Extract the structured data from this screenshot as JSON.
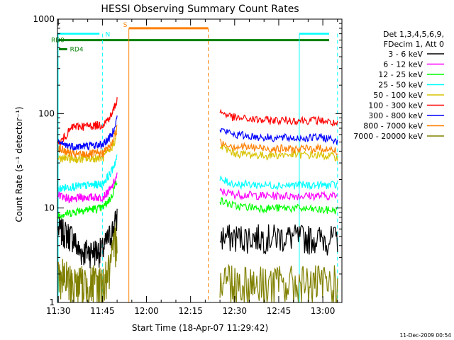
{
  "chart_data": {
    "type": "line",
    "title": "HESSI Observing Summary Count Rates",
    "xlabel": "Start Time (18-Apr-07 11:29:42)",
    "ylabel": "Count Rate (s⁻¹ detector⁻¹)",
    "x_scale": "time",
    "y_scale": "log",
    "xlim": [
      "11:29:42",
      "13:06:30"
    ],
    "ylim": [
      1,
      1000
    ],
    "x_ticks": [
      "11:30",
      "11:45",
      "12:00",
      "12:15",
      "12:30",
      "12:45",
      "13:00"
    ],
    "y_ticks": [
      "1",
      "10",
      "100",
      "1000"
    ],
    "legend_header": [
      "Det 1,3,4,5,6,9,",
      "FDecim 1, Att 0"
    ],
    "legend_position": "right",
    "footer": "11-Dec-2009 00:54",
    "series": [
      {
        "name": "3 - 6 keV",
        "color": "#000000",
        "x": [
          "11:30",
          "11:35",
          "11:37",
          "11:45",
          "11:48",
          "11:50",
          "12:25",
          "12:30",
          "12:40",
          "12:50",
          "13:00",
          "13:05"
        ],
        "values": [
          6,
          5,
          3.5,
          3.6,
          5.5,
          8,
          5,
          5,
          5,
          5,
          4.8,
          4.8
        ]
      },
      {
        "name": "6 - 12 keV",
        "color": "#ff00ff",
        "x": [
          "11:30",
          "11:35",
          "11:37",
          "11:45",
          "11:48",
          "11:50",
          "12:25",
          "12:30",
          "12:40",
          "12:50",
          "13:00",
          "13:05"
        ],
        "values": [
          14,
          12,
          13,
          13,
          16,
          22,
          15,
          14,
          13.5,
          13.5,
          13.5,
          13.5
        ]
      },
      {
        "name": "12 - 25 keV",
        "color": "#00ff00",
        "x": [
          "11:30",
          "11:35",
          "11:37",
          "11:45",
          "11:48",
          "11:50",
          "12:25",
          "12:30",
          "12:40",
          "12:50",
          "13:00",
          "13:05"
        ],
        "values": [
          8.5,
          9,
          9.5,
          10,
          13,
          20,
          12,
          10.5,
          10,
          10,
          9.5,
          9.5
        ]
      },
      {
        "name": "25 - 50 keV",
        "color": "#00ffff",
        "x": [
          "11:30",
          "11:35",
          "11:37",
          "11:45",
          "11:48",
          "11:50",
          "12:25",
          "12:30",
          "12:40",
          "12:50",
          "13:00",
          "13:05"
        ],
        "values": [
          16,
          17,
          17,
          18,
          24,
          35,
          20,
          18,
          17.5,
          17.5,
          17.5,
          17.5
        ]
      },
      {
        "name": "50 - 100 keV",
        "color": "#d9c300",
        "x": [
          "11:30",
          "11:35",
          "11:37",
          "11:45",
          "11:48",
          "11:50",
          "12:25",
          "12:30",
          "12:40",
          "12:50",
          "13:00",
          "13:05"
        ],
        "values": [
          34,
          33,
          33,
          34,
          42,
          60,
          45,
          38,
          36,
          37,
          36,
          35
        ]
      },
      {
        "name": "100 - 300 keV",
        "color": "#ff0000",
        "x": [
          "11:30",
          "11:35",
          "11:37",
          "11:45",
          "11:48",
          "11:50",
          "12:25",
          "12:30",
          "12:40",
          "12:50",
          "13:00",
          "13:05"
        ],
        "values": [
          47,
          73,
          73,
          76,
          95,
          140,
          105,
          90,
          85,
          85,
          85,
          77
        ]
      },
      {
        "name": "300 - 800 keV",
        "color": "#0000ff",
        "x": [
          "11:30",
          "11:35",
          "11:37",
          "11:45",
          "11:48",
          "11:50",
          "12:25",
          "12:30",
          "12:40",
          "12:50",
          "13:00",
          "13:05"
        ],
        "values": [
          48,
          45,
          45,
          47,
          58,
          90,
          68,
          60,
          56,
          55,
          56,
          52
        ]
      },
      {
        "name": "800 - 7000 keV",
        "color": "#ff8000",
        "x": [
          "11:30",
          "11:35",
          "11:37",
          "11:45",
          "11:48",
          "11:50",
          "12:25",
          "12:30",
          "12:40",
          "12:50",
          "13:00",
          "13:05"
        ],
        "values": [
          43,
          37,
          37,
          38,
          47,
          70,
          50,
          45,
          43,
          42,
          43,
          40
        ]
      },
      {
        "name": "7000 - 20000 keV",
        "color": "#808000",
        "x": [
          "11:30",
          "11:35",
          "11:37",
          "11:45",
          "11:48",
          "11:50",
          "12:25",
          "12:30",
          "12:40",
          "12:50",
          "13:00",
          "13:05"
        ],
        "values": [
          2,
          1.6,
          1.6,
          1.6,
          2.5,
          6,
          2,
          1.7,
          1.6,
          1.6,
          1.6,
          1.6
        ]
      }
    ],
    "annotations": {
      "N": {
        "label": "N",
        "color": "#00ffff"
      },
      "S": {
        "label": "S",
        "color": "#ff8000"
      },
      "RD0": {
        "label": "RD0",
        "color": "#008000"
      },
      "RD4": {
        "label": "RD4",
        "color": "#008000"
      }
    }
  }
}
